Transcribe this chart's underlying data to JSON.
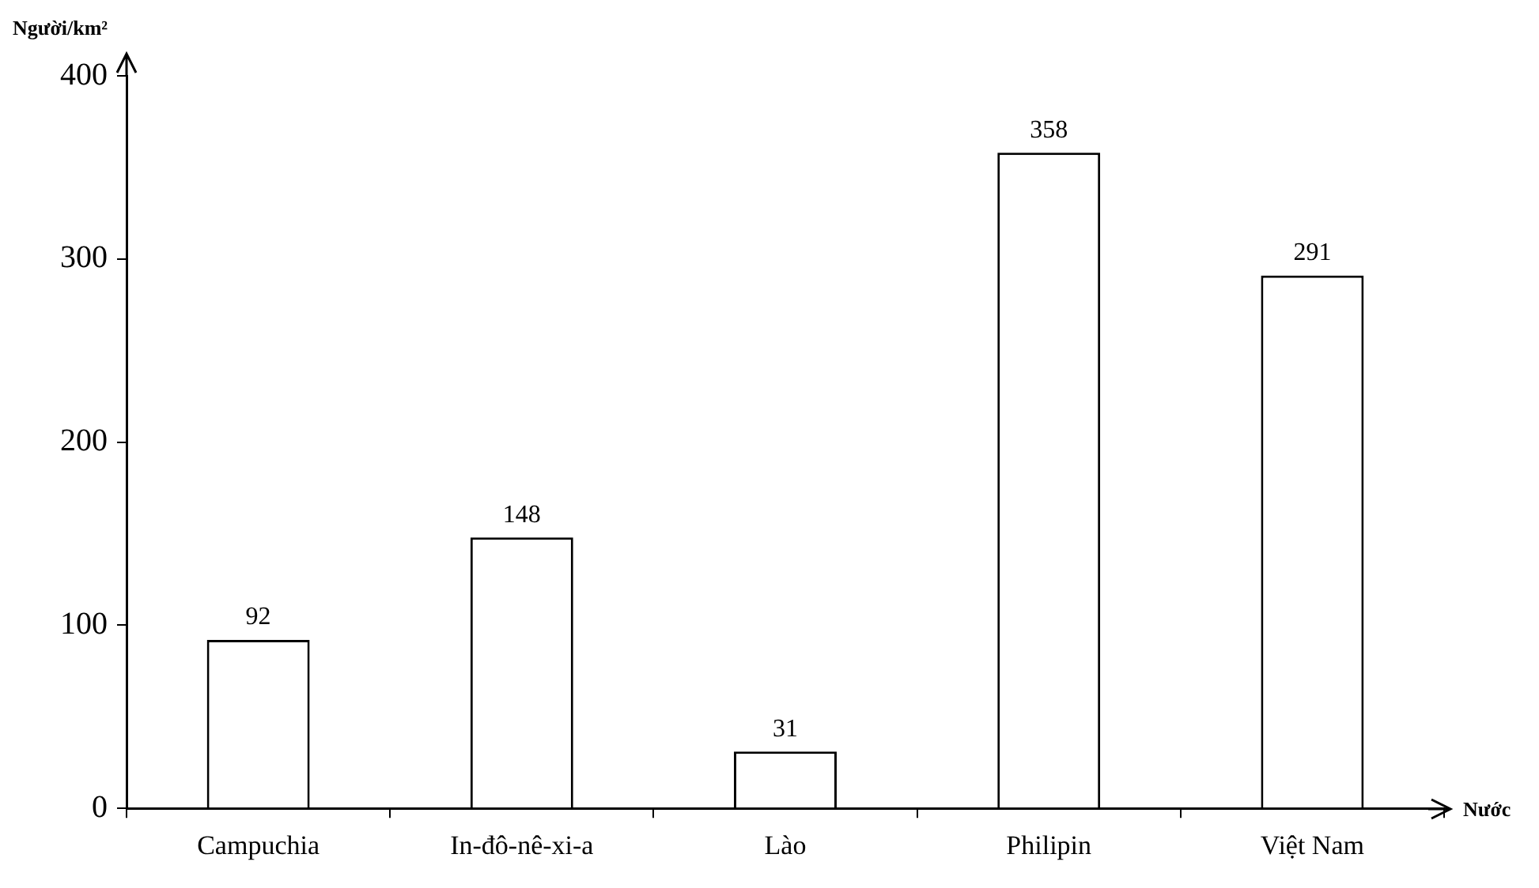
{
  "chart_data": {
    "type": "bar",
    "ylabel": "Người/km²",
    "xlabel": "Nước",
    "categories": [
      "Campuchia",
      "In-đô-nê-xi-a",
      "Lào",
      "Philipin",
      "Việt Nam"
    ],
    "values": [
      92,
      148,
      31,
      358,
      291
    ],
    "color": "#ffffff",
    "ylim": [
      0,
      400
    ],
    "yticks": [
      0,
      100,
      200,
      300,
      400
    ],
    "grid": false,
    "legend": false,
    "data_labels": true
  }
}
